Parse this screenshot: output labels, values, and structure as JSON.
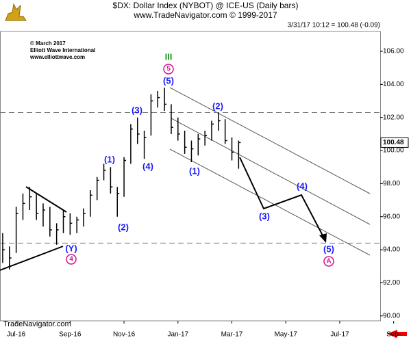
{
  "chart_data": {
    "type": "ohlc",
    "title": "$DX: Dollar Index (NYBOT) @ ICE-US (Daily bars)",
    "subtitle": "www.TradeNavigator.com © 1999-2017",
    "quote": "3/31/17 10:12 = 100.48 (-0.09)",
    "copyright": [
      "© March 2017",
      "Elliott Wave International",
      "www.elliottwave.com"
    ],
    "footer": "TradeNavigator.com",
    "color": "#000000",
    "x": [
      -0.5,
      -0.25,
      0,
      0.25,
      0.5,
      0.75,
      1,
      1.25,
      1.5,
      1.75,
      2,
      2.25,
      2.5,
      2.75,
      3,
      3.25,
      3.5,
      3.75,
      4,
      4.25,
      4.5,
      4.75,
      5,
      5.25,
      5.5,
      5.75,
      6,
      6.25,
      6.5,
      6.75,
      7,
      7.25,
      7.5,
      7.75,
      8,
      8.25
    ],
    "high": [
      95.0,
      94.2,
      96.6,
      97.4,
      97.8,
      97.4,
      96.8,
      96.6,
      95.6,
      96.4,
      96.2,
      96.0,
      96.5,
      97.6,
      98.4,
      99.2,
      99.0,
      97.8,
      99.6,
      101.6,
      102.0,
      101.2,
      103.4,
      103.6,
      103.8,
      102.8,
      102.0,
      101.2,
      100.6,
      101.0,
      101.2,
      101.8,
      102.3,
      101.9,
      100.8,
      100.6
    ],
    "low": [
      93.2,
      92.8,
      93.8,
      95.8,
      96.4,
      95.8,
      95.4,
      94.8,
      94.3,
      95.0,
      94.9,
      95.0,
      95.4,
      96.0,
      97.0,
      98.2,
      97.4,
      96.0,
      97.2,
      99.2,
      100.4,
      99.5,
      100.9,
      102.6,
      102.4,
      101.0,
      100.6,
      99.8,
      99.3,
      99.7,
      100.3,
      100.6,
      101.2,
      100.4,
      99.4,
      98.9
    ],
    "close": [
      94.0,
      93.5,
      96.2,
      96.8,
      97.2,
      96.2,
      96.4,
      95.2,
      95.2,
      96.0,
      95.6,
      95.8,
      96.2,
      97.3,
      98.2,
      98.8,
      97.8,
      97.4,
      99.4,
      101.3,
      101.0,
      100.8,
      103.0,
      103.2,
      102.8,
      101.4,
      101.0,
      100.2,
      100.1,
      100.7,
      100.9,
      101.6,
      101.8,
      100.6,
      99.9,
      100.48
    ],
    "reference_lines": [
      102.3,
      94.4
    ],
    "xlim": [
      -0.6,
      13.5
    ],
    "xticks": [
      {
        "value": 0,
        "label": "Jul-16"
      },
      {
        "value": 2,
        "label": "Sep-16"
      },
      {
        "value": 4,
        "label": "Nov-16"
      },
      {
        "value": 6,
        "label": "Jan-17"
      },
      {
        "value": 8,
        "label": "Mar-17"
      },
      {
        "value": 10,
        "label": "May-17"
      },
      {
        "value": 12,
        "label": "Jul-17"
      },
      {
        "value": 14,
        "label": "Sep-"
      }
    ],
    "ylim": [
      89.7,
      107.2
    ],
    "yticks": [
      {
        "value": 90,
        "label": "90.00"
      },
      {
        "value": 92,
        "label": "92.00"
      },
      {
        "value": 94,
        "label": "94.00"
      },
      {
        "value": 96,
        "label": "96.00"
      },
      {
        "value": 98,
        "label": "98.00"
      },
      {
        "value": 100,
        "label": "100.00"
      },
      {
        "value": 102,
        "label": "102.00"
      },
      {
        "value": 104,
        "label": "104.00"
      },
      {
        "value": 106,
        "label": "106.00"
      }
    ],
    "wave_labels": [
      "III",
      "5",
      "(5)",
      "(3)",
      "(1)",
      "(4)",
      "(2)",
      "(Y)",
      "4",
      "(1)",
      "(2)",
      "(3)",
      "(4)",
      "(5)",
      "A"
    ]
  }
}
